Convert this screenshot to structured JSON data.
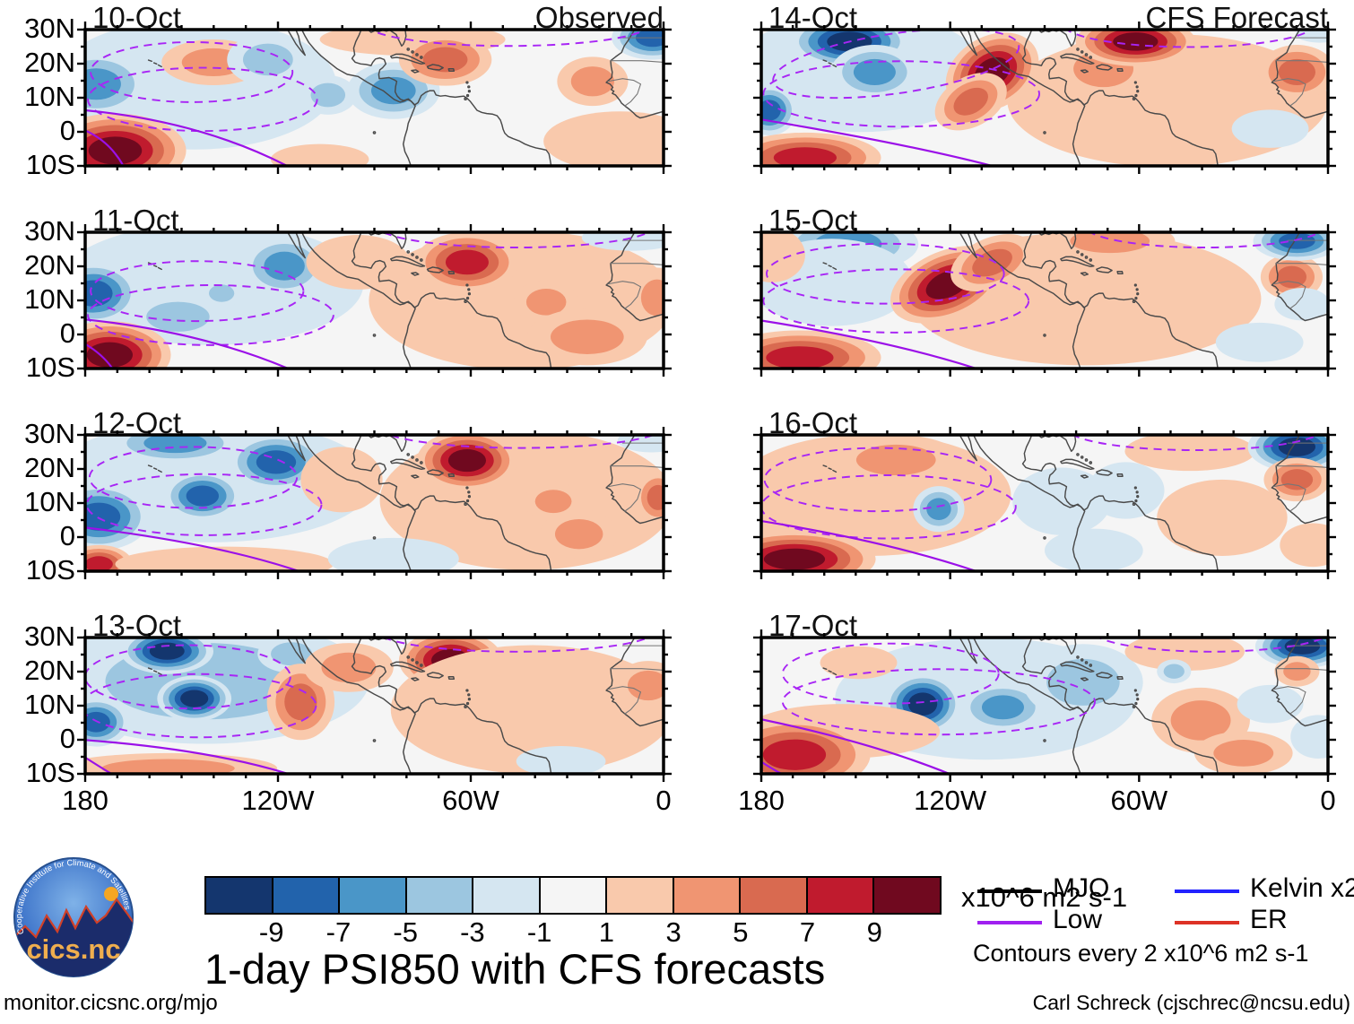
{
  "chart_data": {
    "type": "heatmap",
    "title": "1-day PSI850 with CFS forecasts",
    "column_titles": [
      "Observed",
      "CFS Forecast"
    ],
    "units": "x10^6 m2 s-1",
    "contour_note": "Contours every 2 x10^6 m2 s-1",
    "lat_ticks": [
      "30N",
      "20N",
      "10N",
      "0",
      "10S"
    ],
    "lon_ticks": [
      "180",
      "120W",
      "60W",
      "0"
    ],
    "lat_range": [
      "10S",
      "30N"
    ],
    "lon_range": [
      "180",
      "0"
    ],
    "colorbar": {
      "ticks": [
        "-9",
        "-7",
        "-5",
        "-3",
        "-1",
        "1",
        "3",
        "5",
        "7",
        "9"
      ],
      "colors": [
        "#14366e",
        "#2263ac",
        "#4a96c8",
        "#9cc6e0",
        "#d5e6f1",
        "#f5f5f5",
        "#f9c9ac",
        "#f09572",
        "#d96a50",
        "#c01b2e",
        "#70091f"
      ]
    },
    "legend": [
      {
        "label": "MJO",
        "color": "#000000"
      },
      {
        "label": "Low",
        "color": "#a020f0"
      },
      {
        "label": "Kelvin x2",
        "color": "#2222ff"
      },
      {
        "label": "ER",
        "color": "#dd3226"
      }
    ],
    "contour_colors": {
      "dashed_low": "#a825f5",
      "solid_low": "#9b10e8"
    },
    "panels": [
      {
        "date": "10-Oct",
        "col": 0,
        "row": 0,
        "blobs": [
          [
            200,
            100,
            260,
            120,
            -1,
            0
          ],
          [
            20,
            100,
            95,
            60,
            -3,
            0
          ],
          [
            235,
            60,
            95,
            42,
            2,
            0
          ],
          [
            335,
            55,
            75,
            48,
            -2,
            0
          ],
          [
            445,
            120,
            52,
            36,
            -2,
            0
          ],
          [
            565,
            112,
            85,
            52,
            -3,
            0
          ],
          [
            600,
            18,
            170,
            30,
            1,
            0
          ],
          [
            660,
            55,
            85,
            48,
            3,
            0
          ],
          [
            930,
            95,
            65,
            45,
            2,
            0
          ],
          [
            980,
            205,
            140,
            55,
            1,
            0
          ],
          [
            1040,
            15,
            75,
            40,
            -4,
            0
          ],
          [
            55,
            222,
            130,
            68,
            5,
            0
          ],
          [
            430,
            238,
            90,
            28,
            1,
            0
          ]
        ],
        "dashed": [
          [
            195,
            78,
            185,
            55,
            0
          ],
          [
            215,
            128,
            210,
            58,
            0
          ],
          [
            775,
            -10,
            260,
            40,
            0
          ]
        ],
        "solid": [
          "M0,148 Q210,168 370,250",
          "M0,185 Q45,205 70,250"
        ]
      },
      {
        "date": "11-Oct",
        "col": 0,
        "row": 1,
        "blobs": [
          [
            230,
            95,
            280,
            112,
            -1,
            0
          ],
          [
            15,
            112,
            85,
            58,
            -4,
            0
          ],
          [
            170,
            155,
            95,
            45,
            -2,
            0
          ],
          [
            365,
            62,
            78,
            55,
            -3,
            0
          ],
          [
            250,
            112,
            38,
            26,
            -2,
            0
          ],
          [
            800,
            125,
            280,
            128,
            1,
            0
          ],
          [
            500,
            55,
            95,
            50,
            1,
            0
          ],
          [
            700,
            55,
            95,
            55,
            4,
            0
          ],
          [
            845,
            128,
            60,
            40,
            2,
            0
          ],
          [
            920,
            192,
            110,
            52,
            2,
            0
          ],
          [
            1048,
            120,
            48,
            55,
            2,
            0
          ],
          [
            1000,
            10,
            90,
            24,
            -1,
            0
          ],
          [
            45,
            225,
            112,
            62,
            5,
            0
          ]
        ],
        "dashed": [
          [
            205,
            108,
            195,
            55,
            0
          ],
          [
            230,
            152,
            225,
            55,
            0
          ],
          [
            790,
            -12,
            255,
            40,
            0
          ]
        ],
        "solid": [
          "M0,160 Q210,182 372,250",
          "M0,205 Q32,224 50,250"
        ]
      },
      {
        "date": "12-Oct",
        "col": 0,
        "row": 2,
        "blobs": [
          [
            230,
            85,
            300,
            112,
            -1,
            0
          ],
          [
            165,
            15,
            120,
            38,
            -3,
            0
          ],
          [
            350,
            50,
            88,
            52,
            -4,
            0
          ],
          [
            215,
            112,
            72,
            46,
            -4,
            0
          ],
          [
            25,
            150,
            95,
            62,
            -4,
            0
          ],
          [
            810,
            120,
            270,
            128,
            1,
            0
          ],
          [
            470,
            82,
            75,
            60,
            1,
            0
          ],
          [
            700,
            47,
            92,
            55,
            5,
            0
          ],
          [
            858,
            122,
            55,
            35,
            2,
            0
          ],
          [
            905,
            182,
            72,
            45,
            2,
            0
          ],
          [
            1050,
            115,
            42,
            48,
            3,
            0
          ],
          [
            25,
            237,
            62,
            35,
            4,
            0
          ],
          [
            255,
            237,
            200,
            32,
            1,
            0
          ],
          [
            565,
            227,
            120,
            38,
            -1,
            0
          ],
          [
            1038,
            10,
            62,
            22,
            -1,
            0
          ]
        ],
        "dashed": [
          [
            198,
            78,
            190,
            56,
            0
          ],
          [
            218,
            128,
            215,
            56,
            0
          ],
          [
            800,
            -14,
            260,
            38,
            0
          ]
        ],
        "solid": [
          "M0,170 Q235,198 392,250"
        ]
      },
      {
        "date": "13-Oct",
        "col": 0,
        "row": 3,
        "blobs": [
          [
            220,
            80,
            300,
            115,
            -2,
            0
          ],
          [
            150,
            25,
            85,
            42,
            -5,
            0
          ],
          [
            200,
            112,
            68,
            42,
            -5,
            0
          ],
          [
            20,
            155,
            62,
            45,
            -4,
            0
          ],
          [
            378,
            30,
            62,
            35,
            -2,
            0
          ],
          [
            395,
            118,
            62,
            70,
            3,
            0
          ],
          [
            483,
            55,
            82,
            45,
            2,
            0
          ],
          [
            670,
            42,
            95,
            55,
            5,
            0
          ],
          [
            820,
            132,
            260,
            118,
            1,
            0
          ],
          [
            1032,
            88,
            62,
            45,
            2,
            0
          ],
          [
            152,
            240,
            200,
            28,
            2,
            0
          ],
          [
            872,
            227,
            82,
            28,
            -1,
            0
          ]
        ],
        "dashed": [
          [
            188,
            72,
            188,
            58,
            0
          ],
          [
            208,
            125,
            215,
            58,
            0
          ],
          [
            790,
            -12,
            255,
            38,
            0
          ]
        ],
        "solid": [
          "M0,188 Q225,205 372,250",
          "M0,220 Q28,238 48,250"
        ]
      },
      {
        "date": "14-Oct",
        "col": 1,
        "row": 0,
        "blobs": [
          [
            185,
            78,
            235,
            110,
            -1,
            0
          ],
          [
            165,
            22,
            112,
            48,
            -5,
            0
          ],
          [
            212,
            78,
            82,
            50,
            -3,
            0
          ],
          [
            15,
            148,
            52,
            46,
            -4,
            0
          ],
          [
            760,
            130,
            300,
            122,
            1,
            0
          ],
          [
            640,
            72,
            92,
            55,
            2,
            0
          ],
          [
            432,
            78,
            92,
            66,
            5,
            -28
          ],
          [
            392,
            132,
            72,
            46,
            3,
            -28
          ],
          [
            700,
            22,
            112,
            45,
            5,
            0
          ],
          [
            1002,
            78,
            72,
            50,
            3,
            0
          ],
          [
            82,
            235,
            142,
            46,
            4,
            0
          ],
          [
            952,
            182,
            72,
            35,
            -1,
            0
          ],
          [
            1045,
            8,
            45,
            16,
            -1,
            0
          ]
        ],
        "dashed": [
          [
            252,
            62,
            232,
            55,
            -8
          ],
          [
            262,
            118,
            258,
            60,
            0
          ],
          [
            800,
            -10,
            235,
            42,
            0
          ]
        ],
        "solid": [
          "M0,165 Q265,208 432,250"
        ]
      },
      {
        "date": "15-Oct",
        "col": 1,
        "row": 1,
        "blobs": [
          [
            162,
            22,
            132,
            52,
            -3,
            0
          ],
          [
            132,
            92,
            152,
            80,
            -1,
            0
          ],
          [
            20,
            42,
            62,
            50,
            1,
            0
          ],
          [
            605,
            122,
            330,
            122,
            1,
            0
          ],
          [
            348,
            96,
            112,
            62,
            5,
            -22
          ],
          [
            432,
            56,
            82,
            46,
            3,
            -22
          ],
          [
            652,
            16,
            122,
            36,
            2,
            0
          ],
          [
            72,
            230,
            152,
            50,
            4,
            0
          ],
          [
            992,
            82,
            58,
            42,
            3,
            0
          ],
          [
            1002,
            16,
            82,
            36,
            -4,
            0
          ],
          [
            932,
            202,
            82,
            36,
            -1,
            0
          ],
          [
            1012,
            132,
            52,
            30,
            -1,
            0
          ]
        ],
        "dashed": [
          [
            232,
            76,
            222,
            55,
            0
          ],
          [
            252,
            126,
            248,
            58,
            0
          ],
          [
            830,
            -12,
            225,
            40,
            0
          ]
        ],
        "solid": [
          "M0,162 Q235,198 402,250"
        ]
      },
      {
        "date": "16-Oct",
        "col": 1,
        "row": 2,
        "blobs": [
          [
            205,
            110,
            262,
            112,
            1,
            0
          ],
          [
            252,
            46,
            122,
            46,
            2,
            0
          ],
          [
            62,
            228,
            152,
            52,
            5,
            0
          ],
          [
            332,
            136,
            48,
            42,
            -3,
            0
          ],
          [
            562,
            122,
            92,
            62,
            -1,
            0
          ],
          [
            682,
            102,
            72,
            52,
            -1,
            0
          ],
          [
            622,
            212,
            92,
            40,
            -1,
            0
          ],
          [
            862,
            152,
            122,
            70,
            1,
            0
          ],
          [
            802,
            30,
            122,
            36,
            1,
            0
          ],
          [
            1002,
            22,
            92,
            46,
            -5,
            0
          ],
          [
            1002,
            82,
            62,
            40,
            3,
            0
          ],
          [
            1032,
            202,
            62,
            40,
            1,
            0
          ]
        ],
        "dashed": [
          [
            218,
            82,
            212,
            58,
            0
          ],
          [
            238,
            132,
            238,
            58,
            0
          ],
          [
            812,
            -12,
            240,
            40,
            0
          ]
        ],
        "solid": [
          "M0,158 Q235,195 402,250"
        ]
      },
      {
        "date": "17-Oct",
        "col": 1,
        "row": 3,
        "blobs": [
          [
            420,
            112,
            282,
            112,
            -1,
            0
          ],
          [
            302,
            122,
            72,
            56,
            -5,
            0
          ],
          [
            452,
            128,
            82,
            46,
            -3,
            0
          ],
          [
            602,
            82,
            112,
            70,
            -2,
            0
          ],
          [
            152,
            172,
            182,
            50,
            1,
            0
          ],
          [
            62,
            215,
            142,
            68,
            4,
            0
          ],
          [
            182,
            46,
            72,
            30,
            1,
            0
          ],
          [
            792,
            26,
            112,
            35,
            1,
            0
          ],
          [
            822,
            152,
            92,
            60,
            2,
            0
          ],
          [
            902,
            212,
            92,
            40,
            2,
            0
          ],
          [
            1012,
            16,
            88,
            40,
            -5,
            0
          ],
          [
            952,
            122,
            62,
            35,
            -1,
            0
          ],
          [
            1042,
            182,
            52,
            40,
            -1,
            0
          ],
          [
            1002,
            62,
            42,
            28,
            2,
            0
          ],
          [
            772,
            62,
            32,
            22,
            -2,
            0
          ]
        ],
        "dashed": [
          [
            242,
            66,
            202,
            55,
            0
          ],
          [
            332,
            118,
            292,
            60,
            0
          ],
          [
            842,
            -14,
            225,
            40,
            0
          ]
        ],
        "solid": [
          "M0,150 Q205,192 352,250",
          "M0,228 Q22,242 38,250"
        ]
      }
    ]
  },
  "logo": {
    "name": "cics.nc",
    "arc_text": "Cooperative Institute for Climate and Satellites"
  },
  "footer": {
    "url": "monitor.cicsnc.org/mjo",
    "credit": "Carl Schreck (cjschrec@ncsu.edu)"
  }
}
